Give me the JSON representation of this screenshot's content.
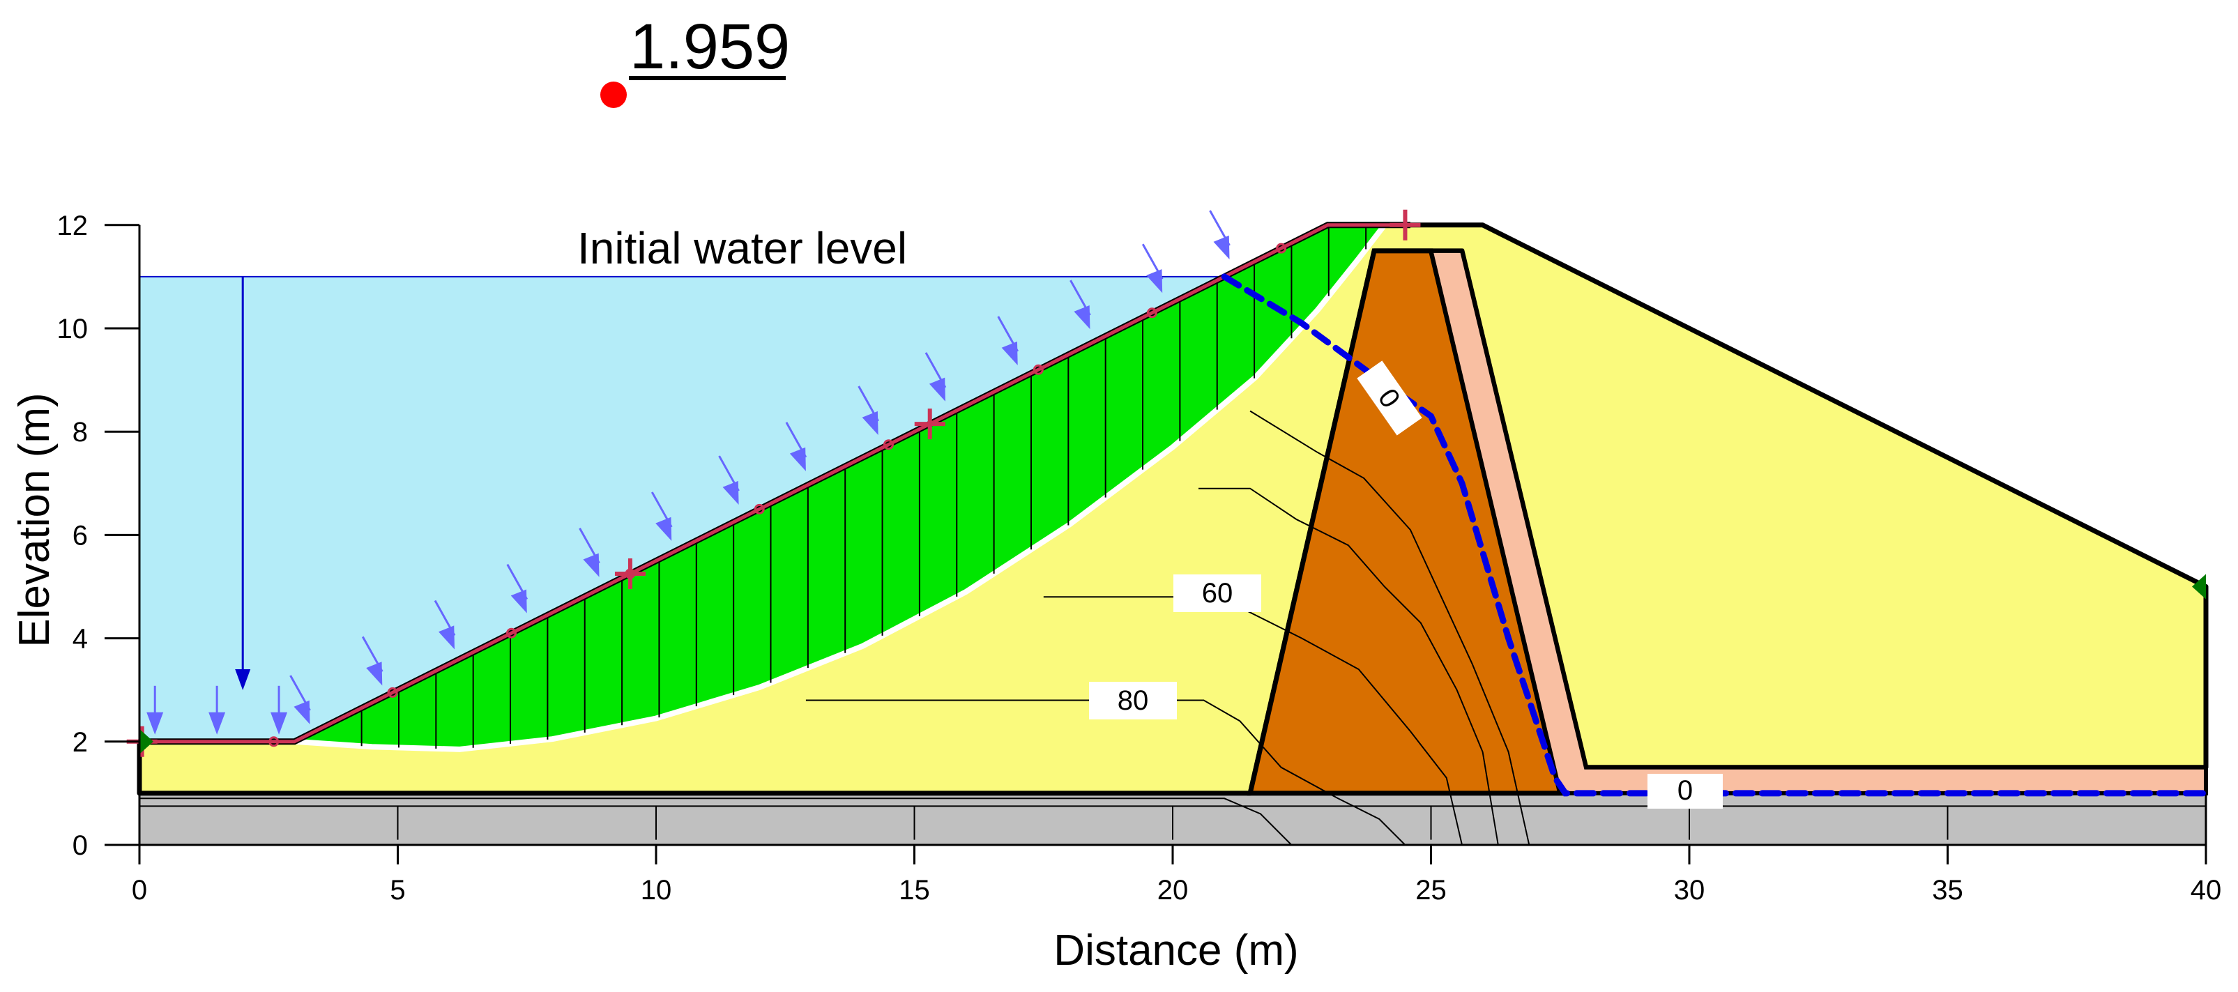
{
  "factor_of_safety": "1.959",
  "water_level_label": "Initial water level",
  "axes": {
    "xlabel": "Distance (m)",
    "ylabel": "Elevation (m)",
    "xlim": [
      0,
      40
    ],
    "ylim": [
      0,
      12
    ],
    "x_ticks": [
      "0",
      "5",
      "10",
      "15",
      "20",
      "25",
      "30",
      "35",
      "40"
    ],
    "y_ticks": [
      "0",
      "2",
      "4",
      "6",
      "8",
      "10",
      "12"
    ]
  },
  "contour_labels": {
    "c60": "60",
    "c80": "80",
    "c0_upper": "0",
    "c0_lower": "0"
  },
  "colors": {
    "water": "#b4ecf8",
    "shell": "#fafa7d",
    "core": "#d86f00",
    "filter": "#f9bfa2",
    "foundation": "#c0c0c0",
    "slip_mass": "#00e600",
    "slip_point": "#ff0000",
    "phreatic": "#0000e6",
    "load_arrow": "#6666ff",
    "slope_line": "#cc3355"
  },
  "geometry_m": {
    "foundation": [
      [
        0,
        0
      ],
      [
        40,
        0
      ],
      [
        40,
        1
      ],
      [
        0,
        1
      ]
    ],
    "upstream_shell": [
      [
        0,
        1
      ],
      [
        0,
        2
      ],
      [
        3,
        2
      ],
      [
        23,
        12
      ],
      [
        26,
        12
      ],
      [
        40,
        5
      ],
      [
        40,
        1.5
      ],
      [
        28,
        1.5
      ],
      [
        25.6,
        11.5
      ],
      [
        23.9,
        11.5
      ],
      [
        21.5,
        1
      ]
    ],
    "core": [
      [
        21.5,
        1
      ],
      [
        23.9,
        11.5
      ],
      [
        25,
        11.5
      ],
      [
        27.5,
        1
      ]
    ],
    "filter": [
      [
        25,
        11.5
      ],
      [
        25.6,
        11.5
      ],
      [
        28,
        1.5
      ],
      [
        40,
        1.5
      ],
      [
        40,
        1
      ],
      [
        27.5,
        1
      ]
    ],
    "slope_surface": [
      [
        0,
        2
      ],
      [
        3,
        2
      ],
      [
        23,
        12
      ],
      [
        24.6,
        12
      ]
    ],
    "slip_arc": [
      [
        3,
        2
      ],
      [
        4.5,
        1.9
      ],
      [
        6.2,
        1.85
      ],
      [
        8,
        2.05
      ],
      [
        10,
        2.45
      ],
      [
        12,
        3.05
      ],
      [
        14,
        3.85
      ],
      [
        16,
        4.9
      ],
      [
        18,
        6.2
      ],
      [
        20,
        7.7
      ],
      [
        21.6,
        9.05
      ],
      [
        22.8,
        10.35
      ],
      [
        23.6,
        11.35
      ],
      [
        24.1,
        12
      ]
    ],
    "phreatic_line": [
      [
        21,
        11
      ],
      [
        22.5,
        10.1
      ],
      [
        24,
        9
      ],
      [
        25,
        8.3
      ],
      [
        25.6,
        7
      ],
      [
        26.5,
        4
      ],
      [
        27,
        2.5
      ],
      [
        27.4,
        1.3
      ],
      [
        27.6,
        1
      ],
      [
        40,
        1
      ]
    ],
    "water_surface_y": 11
  },
  "load_arrows_m": [
    [
      0.3,
      2
    ],
    [
      1.5,
      2
    ],
    [
      2.7,
      2
    ],
    [
      3.3,
      2.2
    ],
    [
      4.7,
      2.95
    ],
    [
      6.1,
      3.65
    ],
    [
      7.5,
      4.35
    ],
    [
      8.9,
      5.05
    ],
    [
      10.3,
      5.75
    ],
    [
      11.6,
      6.45
    ],
    [
      12.9,
      7.1
    ],
    [
      14.3,
      7.8
    ],
    [
      15.6,
      8.45
    ],
    [
      17,
      9.15
    ],
    [
      18.4,
      9.85
    ],
    [
      19.8,
      10.55
    ],
    [
      21.1,
      11.2
    ]
  ],
  "contours_m": [
    [
      [
        0,
        0.9
      ],
      [
        21.0,
        0.9
      ],
      [
        21.7,
        0.6
      ],
      [
        22.3,
        0
      ]
    ],
    [
      [
        12.9,
        2.8
      ],
      [
        20.6,
        2.8
      ],
      [
        21.3,
        2.4
      ],
      [
        22.1,
        1.5
      ],
      [
        23.2,
        0.9
      ],
      [
        24.0,
        0.5
      ],
      [
        24.5,
        0
      ]
    ],
    [
      [
        17.5,
        4.8
      ],
      [
        20.9,
        4.8
      ],
      [
        22.5,
        4.0
      ],
      [
        23.6,
        3.4
      ],
      [
        24.6,
        2.2
      ],
      [
        25.3,
        1.3
      ],
      [
        25.6,
        0
      ]
    ],
    [
      [
        20.5,
        6.9
      ],
      [
        21.5,
        6.9
      ],
      [
        22.4,
        6.3
      ],
      [
        23.4,
        5.8
      ],
      [
        24.1,
        5.0
      ],
      [
        24.8,
        4.3
      ],
      [
        25.5,
        3.0
      ],
      [
        26.0,
        1.8
      ],
      [
        26.3,
        0
      ]
    ],
    [
      [
        21.5,
        8.4
      ],
      [
        22.8,
        7.6
      ],
      [
        23.7,
        7.1
      ],
      [
        24.6,
        6.1
      ],
      [
        25.2,
        4.8
      ],
      [
        25.8,
        3.5
      ],
      [
        26.5,
        1.8
      ],
      [
        26.9,
        0
      ]
    ]
  ]
}
